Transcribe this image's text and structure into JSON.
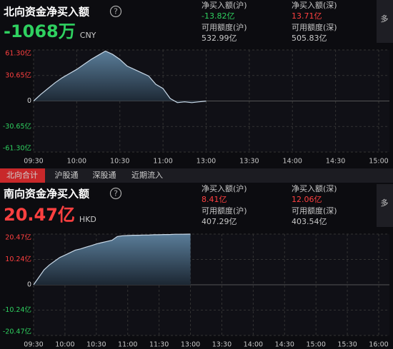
{
  "north": {
    "title": "北向资金净买入额",
    "value": "-1068万",
    "currency": "CNY",
    "stats": [
      {
        "label": "净买入额(沪)",
        "value": "-13.82亿"
      },
      {
        "label": "净买入额(深)",
        "value": "13.71亿"
      },
      {
        "label": "可用额度(沪)",
        "value": "532.99亿"
      },
      {
        "label": "可用额度(深)",
        "value": "505.83亿"
      }
    ],
    "more": "多"
  },
  "tabs": [
    "北向合计",
    "沪股通",
    "深股通",
    "近期流入"
  ],
  "south": {
    "title": "南向资金净买入额",
    "value": "20.47亿",
    "currency": "HKD",
    "stats": [
      {
        "label": "净买入额(沪)",
        "value": "8.41亿"
      },
      {
        "label": "净买入额(深)",
        "value": "12.06亿"
      },
      {
        "label": "可用额度(沪)",
        "value": "407.29亿"
      },
      {
        "label": "可用额度(深)",
        "value": "403.54亿"
      }
    ],
    "more": "多"
  },
  "chart_data": [
    {
      "type": "line",
      "x": [
        "09:30",
        "09:35",
        "09:40",
        "09:45",
        "09:50",
        "09:55",
        "10:00",
        "10:05",
        "10:10",
        "10:15",
        "10:20",
        "10:25",
        "10:30",
        "10:35",
        "10:40",
        "10:45",
        "10:50",
        "10:55",
        "11:00",
        "11:05",
        "11:10",
        "11:15",
        "11:20",
        "11:25",
        "11:30"
      ],
      "values": [
        0,
        8,
        15,
        22,
        28,
        33,
        38,
        44,
        50,
        55,
        60,
        56,
        50,
        42,
        38,
        34,
        30,
        20,
        15,
        3,
        -2,
        -1,
        -2,
        -1,
        -0.11
      ],
      "xticks": [
        "09:30",
        "10:00",
        "10:30",
        "11:00",
        "13:00",
        "13:30",
        "14:00",
        "14:30",
        "15:00"
      ],
      "ylim": [
        -61.3,
        61.3
      ],
      "yticks": [
        {
          "value": 61.3,
          "label": "61.30亿"
        },
        {
          "value": 30.65,
          "label": "30.65亿"
        },
        0,
        {
          "value": -30.65,
          "label": "-30.65亿"
        },
        {
          "value": -61.3,
          "label": "-61.30亿"
        }
      ],
      "grid": true
    },
    {
      "type": "line",
      "x": [
        "09:30",
        "09:35",
        "09:40",
        "09:45",
        "09:50",
        "09:55",
        "10:00",
        "10:05",
        "10:10",
        "10:15",
        "10:20",
        "10:25",
        "10:30",
        "10:35",
        "10:40",
        "10:45",
        "10:50",
        "10:55",
        "11:00",
        "11:05",
        "11:10",
        "11:15",
        "11:20",
        "11:25",
        "11:30",
        "11:35",
        "11:40",
        "11:45",
        "11:50",
        "11:55",
        "12:00"
      ],
      "values": [
        0,
        3,
        6,
        8,
        9.5,
        11,
        12,
        13,
        14,
        14.5,
        15.2,
        15.8,
        16.5,
        17,
        17.5,
        18,
        19.5,
        19.8,
        19.9,
        20,
        20,
        20.1,
        20.1,
        20.2,
        20.2,
        20.3,
        20.3,
        20.4,
        20.4,
        20.45,
        20.47
      ],
      "xticks": [
        "09:30",
        "10:00",
        "10:30",
        "11:00",
        "11:30",
        "13:00",
        "13:30",
        "14:00",
        "14:30",
        "15:00",
        "15:30",
        "16:00"
      ],
      "ylim": [
        -20.47,
        20.47
      ],
      "yticks": [
        {
          "value": 20.47,
          "label": "20.47亿"
        },
        {
          "value": 10.24,
          "label": "10.24亿"
        },
        0,
        {
          "value": -10.24,
          "label": "-10.24亿"
        },
        {
          "value": -20.47,
          "label": "-20.47亿"
        }
      ],
      "grid": true
    }
  ]
}
